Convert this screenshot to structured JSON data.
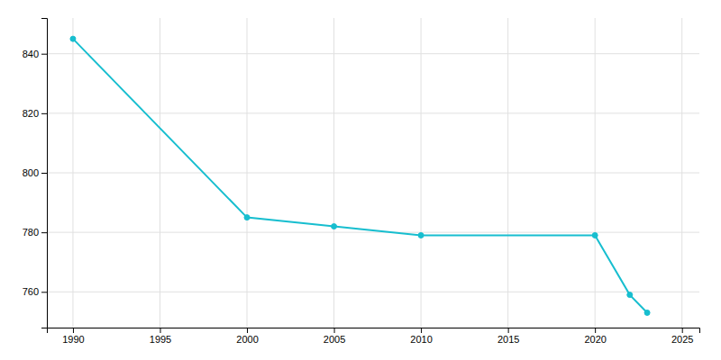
{
  "chart_data": {
    "type": "line",
    "x": [
      1990,
      2000,
      2005,
      2010,
      2020,
      2022,
      2023
    ],
    "values": [
      845,
      785,
      782,
      779,
      779,
      759,
      753
    ],
    "color": "#17BECF",
    "marker": "circle",
    "xlim": [
      1988.5,
      2026
    ],
    "ylim": [
      748,
      852
    ],
    "xticks": [
      1990,
      1995,
      2000,
      2005,
      2010,
      2015,
      2020,
      2025
    ],
    "yticks": [
      760,
      780,
      800,
      820,
      840
    ],
    "grid": true
  }
}
